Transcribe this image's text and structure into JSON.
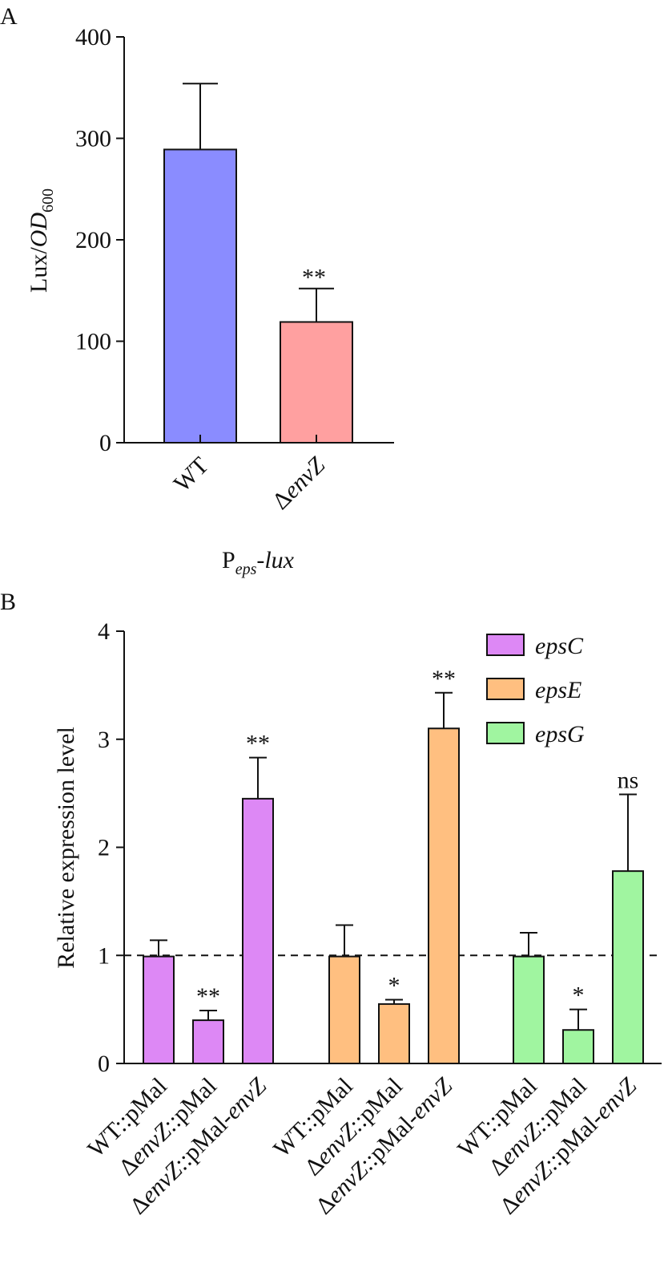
{
  "chart_data": [
    {
      "panel": "A",
      "type": "bar",
      "categories": [
        {
          "parts": [
            {
              "t": "WT",
              "i": false
            }
          ]
        },
        {
          "parts": [
            {
              "t": "Δ",
              "i": false
            },
            {
              "t": "envZ",
              "i": true
            }
          ]
        }
      ],
      "values": [
        289,
        119
      ],
      "errors": [
        65,
        33
      ],
      "significance": [
        "",
        "**"
      ],
      "colors": [
        "#8a8cff",
        "#ffa0a0"
      ],
      "ylim": [
        0,
        400
      ],
      "yticks": [
        "0",
        "100",
        "200",
        "300",
        "400"
      ],
      "ylabel": {
        "main": "Lux/",
        "italic": "OD",
        "sub": "600"
      },
      "xlabel": {
        "main": "P",
        "sub": "eps",
        "suffix": "-lux"
      },
      "grid": false
    },
    {
      "panel": "B",
      "type": "bar",
      "categories": [
        {
          "parts": [
            {
              "t": "WT::pMal",
              "i": false
            }
          ]
        },
        {
          "parts": [
            {
              "t": "Δ",
              "i": false
            },
            {
              "t": "envZ",
              "i": true
            },
            {
              "t": "::pMal",
              "i": false
            }
          ]
        },
        {
          "parts": [
            {
              "t": "Δ",
              "i": false
            },
            {
              "t": "envZ",
              "i": true
            },
            {
              "t": "::pMal-",
              "i": false
            },
            {
              "t": "envZ",
              "i": true
            }
          ]
        }
      ],
      "series": [
        {
          "name": "epsC",
          "color": "#dd88f5",
          "values": [
            0.99,
            0.4,
            2.45
          ],
          "errors": [
            0.15,
            0.09,
            0.38
          ],
          "significance": [
            "",
            "**",
            "**"
          ]
        },
        {
          "name": "epsE",
          "color": "#ffbf80",
          "values": [
            0.99,
            0.55,
            3.1
          ],
          "errors": [
            0.29,
            0.04,
            0.33
          ],
          "significance": [
            "",
            "*",
            "**"
          ]
        },
        {
          "name": "epsG",
          "color": "#a0f5a0",
          "values": [
            0.99,
            0.31,
            1.78
          ],
          "errors": [
            0.22,
            0.19,
            0.71
          ],
          "significance": [
            "",
            "*",
            "ns"
          ]
        }
      ],
      "reference_line": 1,
      "ylim": [
        0,
        4
      ],
      "yticks": [
        "0",
        "1",
        "2",
        "3",
        "4"
      ],
      "ylabel": "Relative expression level",
      "legend_position": "top-right",
      "grid": false
    }
  ]
}
